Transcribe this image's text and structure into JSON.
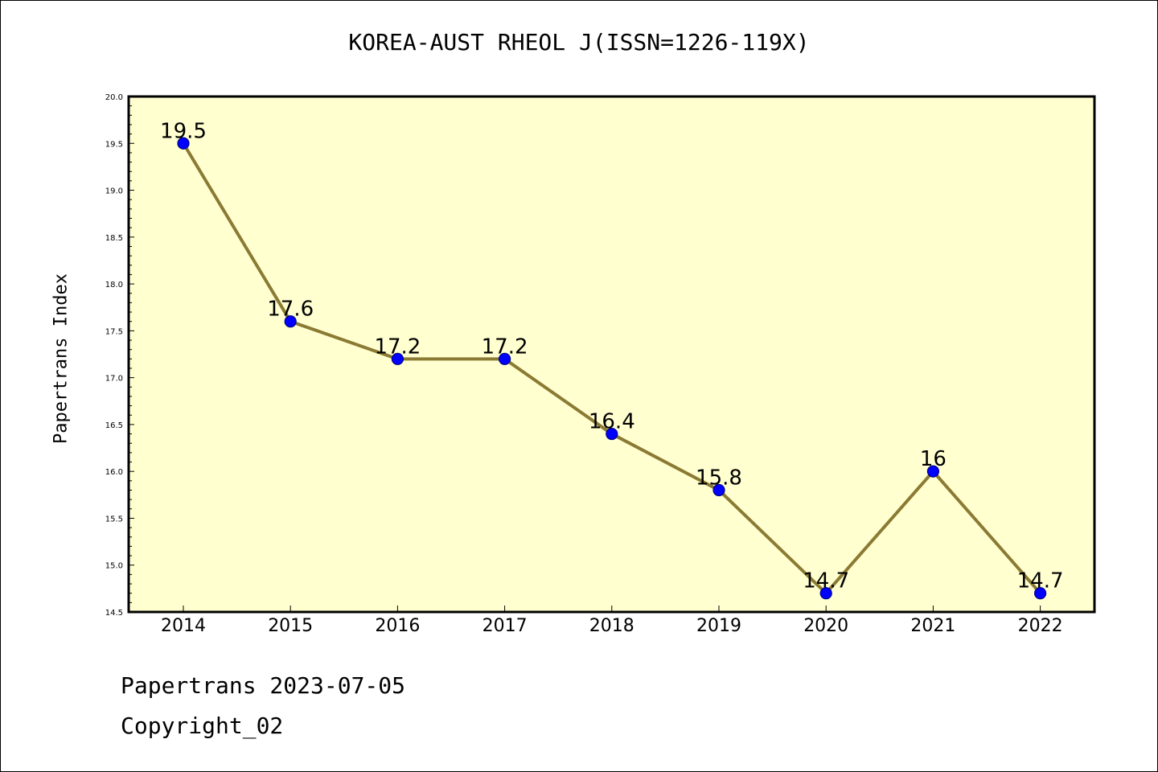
{
  "page": {
    "title": "KOREA-AUST RHEOL J(ISSN=1226-119X)",
    "footer_line1": "Papertrans 2023-07-05",
    "footer_line2": "Copyright_02"
  },
  "chart_data": {
    "type": "line",
    "title": "KOREA-AUST RHEOL J(ISSN=1226-119X)",
    "xlabel": "",
    "ylabel": "Papertrans Index",
    "categories": [
      "2014",
      "2015",
      "2016",
      "2017",
      "2018",
      "2019",
      "2020",
      "2021",
      "2022"
    ],
    "series": [
      {
        "values": [
          19.5,
          17.6,
          17.2,
          17.2,
          16.4,
          15.8,
          14.7,
          16.0,
          14.7
        ],
        "labels": [
          "19.5",
          "17.6",
          "17.2",
          "17.2",
          "16.4",
          "15.8",
          "14.7",
          "16",
          "14.7"
        ]
      }
    ],
    "ylim": [
      14.5,
      20.0
    ],
    "yticks": [
      "14.5",
      "15.0",
      "15.5",
      "16.0",
      "16.5",
      "17.0",
      "17.5",
      "18.0",
      "18.5",
      "19.0",
      "19.5",
      "20.0"
    ],
    "grid": false,
    "colors": {
      "plot_background": "#ffffd0",
      "line": "#8b7a33",
      "marker": "#0000ff",
      "marker_edge": "#00008b"
    }
  }
}
